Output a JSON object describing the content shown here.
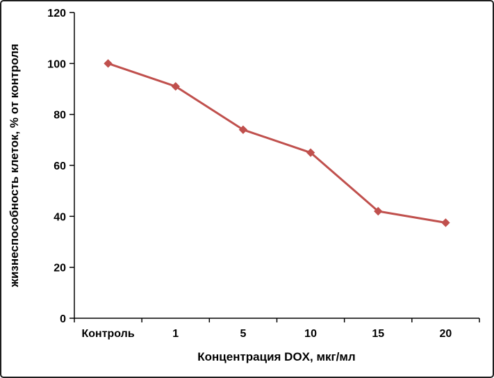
{
  "chart_data": {
    "type": "line",
    "categories": [
      "Контроль",
      "1",
      "5",
      "10",
      "15",
      "20"
    ],
    "values": [
      100,
      91,
      74,
      65,
      42,
      37.5
    ],
    "title": "",
    "xlabel": "Концентрация DOX, мкг/мл",
    "ylabel": "жизнеспособность клеток, % от контроля",
    "ylim": [
      0,
      120
    ],
    "ytick_step": 20,
    "line_color": "#c0504d",
    "marker": "diamond",
    "grid": false,
    "legend": false
  }
}
